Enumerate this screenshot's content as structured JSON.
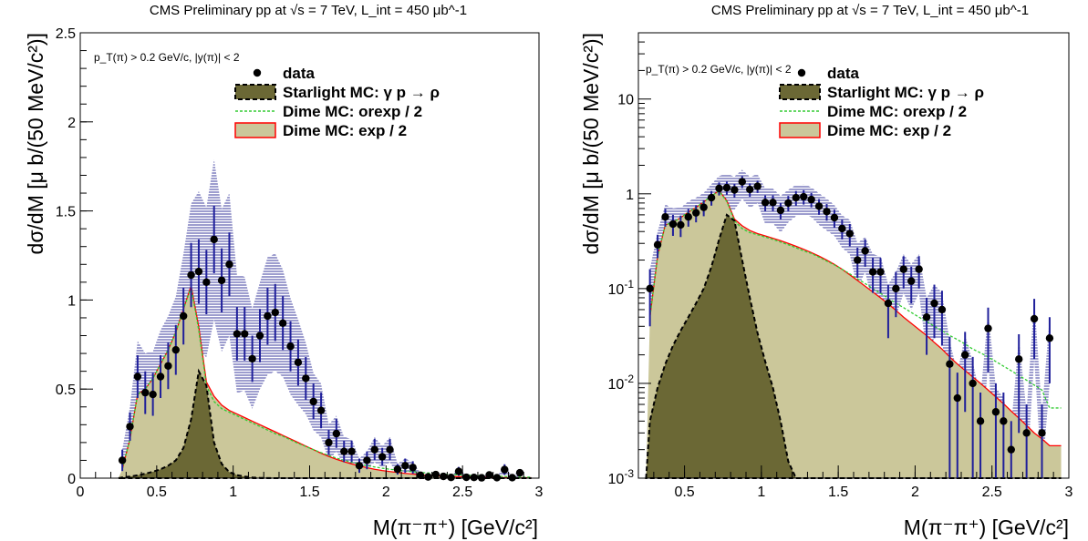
{
  "chart_data": [
    {
      "type": "line",
      "title": "CMS Preliminary pp at √s = 7 TeV, L_int = 450 μb^-1",
      "annotation": "p_T(π) > 0.2 GeV/c, |y(π)| < 2",
      "xlabel": "M(π⁻π⁺) [GeV/c²]",
      "ylabel": "dσ/dM [μ b/(50 MeV/c²)]",
      "xlim": [
        0,
        3
      ],
      "ylim": [
        0,
        2.5
      ],
      "yscale": "linear",
      "xticks": [
        "0",
        "0.5",
        "1",
        "1.5",
        "2",
        "2.5",
        "3"
      ],
      "yticks": [
        "0",
        "0.5",
        "1",
        "1.5",
        "2",
        "2.5"
      ],
      "legend": [
        "data",
        "Starlight MC: γ p → ρ",
        "Dime MC: orexp / 2",
        "Dime MC: exp / 2"
      ],
      "legend_position": "top-right"
    },
    {
      "type": "line",
      "title": "CMS Preliminary pp at √s = 7 TeV, L_int = 450 μb^-1",
      "annotation": "p_T(π) > 0.2 GeV/c, |y(π)| < 2",
      "xlabel": "M(π⁻π⁺) [GeV/c²]",
      "ylabel": "dσ/dM [μ b/(50 MeV/c²)]",
      "xlim": [
        0.2,
        3
      ],
      "ylim": [
        0.001,
        50
      ],
      "yscale": "log",
      "xticks": [
        "0.5",
        "1",
        "1.5",
        "2",
        "2.5",
        "3"
      ],
      "yticks": [
        "10^-3",
        "10^-2",
        "10^-1",
        "1",
        "10"
      ],
      "legend": [
        "data",
        "Starlight MC: γ p → ρ",
        "Dime MC: orexp / 2",
        "Dime MC: exp / 2"
      ],
      "legend_position": "top-right"
    }
  ],
  "series": {
    "x": [
      0.275,
      0.325,
      0.375,
      0.425,
      0.475,
      0.525,
      0.575,
      0.625,
      0.675,
      0.725,
      0.775,
      0.825,
      0.875,
      0.925,
      0.975,
      1.025,
      1.075,
      1.125,
      1.175,
      1.225,
      1.275,
      1.325,
      1.375,
      1.425,
      1.475,
      1.525,
      1.575,
      1.625,
      1.675,
      1.725,
      1.775,
      1.825,
      1.875,
      1.925,
      1.975,
      2.025,
      2.075,
      2.125,
      2.175,
      2.225,
      2.275,
      2.325,
      2.375,
      2.425,
      2.475,
      2.525,
      2.575,
      2.625,
      2.675,
      2.725,
      2.775,
      2.825,
      2.875
    ],
    "data": [
      0.1,
      0.29,
      0.57,
      0.48,
      0.47,
      0.57,
      0.63,
      0.72,
      0.91,
      1.14,
      1.16,
      1.1,
      1.34,
      1.11,
      1.2,
      0.81,
      0.81,
      0.67,
      0.8,
      0.91,
      0.93,
      0.87,
      0.74,
      0.65,
      0.56,
      0.43,
      0.38,
      0.2,
      0.25,
      0.15,
      0.15,
      0.07,
      0.1,
      0.16,
      0.12,
      0.16,
      0.05,
      0.07,
      0.06,
      0.016,
      0.007,
      0.02,
      0.01,
      0.004,
      0.038,
      0.005,
      0.004,
      0.002,
      0.018,
      0.003,
      0.048,
      0.003,
      0.03
    ],
    "data_err": [
      0.06,
      0.08,
      0.12,
      0.12,
      0.12,
      0.12,
      0.13,
      0.14,
      0.16,
      0.18,
      0.18,
      0.18,
      0.19,
      0.18,
      0.18,
      0.15,
      0.15,
      0.13,
      0.15,
      0.16,
      0.16,
      0.15,
      0.14,
      0.13,
      0.12,
      0.1,
      0.1,
      0.07,
      0.08,
      0.06,
      0.06,
      0.04,
      0.05,
      0.06,
      0.05,
      0.06,
      0.03,
      0.04,
      0.035,
      0.015,
      0.006,
      0.015,
      0.009,
      0.004,
      0.025,
      0.005,
      0.004,
      0.002,
      0.015,
      0.003,
      0.03,
      0.003,
      0.02
    ],
    "starlight": [
      0.004,
      0.009,
      0.016,
      0.025,
      0.036,
      0.05,
      0.07,
      0.1,
      0.17,
      0.33,
      0.6,
      0.52,
      0.2,
      0.08,
      0.034,
      0.017,
      0.009,
      0.004,
      0.0015,
      0.0006,
      0.0002,
      5e-05,
      0,
      0,
      0,
      0,
      0,
      0,
      0,
      0,
      0,
      0,
      0,
      0,
      0,
      0,
      0,
      0,
      0,
      0,
      0,
      0,
      0,
      0,
      0,
      0,
      0,
      0,
      0,
      0,
      0,
      0,
      0
    ],
    "dime_exp": [
      0.05,
      0.22,
      0.47,
      0.5,
      0.56,
      0.64,
      0.72,
      0.82,
      0.95,
      1.08,
      0.85,
      0.54,
      0.46,
      0.41,
      0.38,
      0.36,
      0.34,
      0.32,
      0.3,
      0.28,
      0.26,
      0.24,
      0.22,
      0.2,
      0.18,
      0.16,
      0.14,
      0.122,
      0.106,
      0.092,
      0.08,
      0.069,
      0.059,
      0.05,
      0.043,
      0.037,
      0.032,
      0.027,
      0.023,
      0.019,
      0.016,
      0.0137,
      0.0117,
      0.01,
      0.0085,
      0.0072,
      0.0061,
      0.0051,
      0.0043,
      0.0036,
      0.003,
      0.0026,
      0.0022
    ],
    "dime_orexp": [
      0.05,
      0.22,
      0.47,
      0.5,
      0.56,
      0.64,
      0.72,
      0.82,
      0.95,
      1.07,
      0.83,
      0.52,
      0.43,
      0.39,
      0.37,
      0.35,
      0.33,
      0.31,
      0.29,
      0.27,
      0.25,
      0.235,
      0.215,
      0.195,
      0.178,
      0.16,
      0.143,
      0.127,
      0.113,
      0.1,
      0.089,
      0.079,
      0.07,
      0.063,
      0.056,
      0.05,
      0.045,
      0.04,
      0.036,
      0.032,
      0.029,
      0.026,
      0.023,
      0.021,
      0.019,
      0.017,
      0.0152,
      0.0136,
      0.0121,
      0.0108,
      0.0096,
      0.0085,
      0.0055
    ],
    "band_half": [
      0.06,
      0.11,
      0.2,
      0.22,
      0.24,
      0.26,
      0.28,
      0.3,
      0.35,
      0.4,
      0.45,
      0.42,
      0.45,
      0.4,
      0.4,
      0.33,
      0.32,
      0.28,
      0.3,
      0.33,
      0.33,
      0.3,
      0.27,
      0.24,
      0.2,
      0.16,
      0.15,
      0.1,
      0.1,
      0.08,
      0.07,
      0.04,
      0.05,
      0.07,
      0.06,
      0.07,
      0.03,
      0.04,
      0.03,
      0.012,
      0.006,
      0.012,
      0.007,
      0.003,
      0.02,
      0.004,
      0.003,
      0.0015,
      0.012,
      0.002,
      0.03,
      0.002,
      0.02
    ]
  },
  "colors": {
    "starlight_fill": "#6b6835",
    "dime_fill": "#cbc79a",
    "dime_line": "#ff0000",
    "orexp_line": "#33cc33",
    "band": "#3b3b9e",
    "errbar": "#1f1f9a",
    "marker": "#000000"
  }
}
